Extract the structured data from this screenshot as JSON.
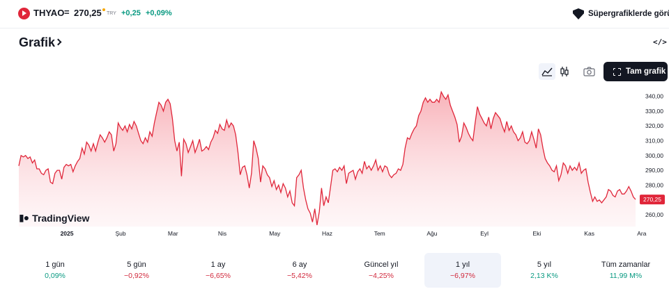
{
  "header": {
    "symbol": "THYAO",
    "equals": "=",
    "price": "270,25",
    "currency": "TRY",
    "change": "+0,25",
    "change_percent": "+0,09%",
    "super_label": "Süpergrafiklerde görün"
  },
  "section": {
    "title": "Grafik",
    "embed_icon": "code-icon"
  },
  "toolbar": {
    "chart_type_area_icon": "area-chart-icon",
    "chart_type_candle_icon": "candlestick-icon",
    "snapshot_icon": "camera-icon",
    "fullscreen_label": "Tam grafik",
    "fullscreen_icon": "fullscreen-icon"
  },
  "watermark": {
    "name": "TradingView",
    "mark": "17"
  },
  "chart_data": {
    "type": "area",
    "ylim": [
      252,
      345
    ],
    "yticks": [
      "340,00",
      "330,00",
      "320,00",
      "310,00",
      "300,00",
      "290,00",
      "280,00",
      "270,00",
      "260,00"
    ],
    "ytick_values": [
      340,
      330,
      320,
      310,
      300,
      290,
      280,
      270,
      260
    ],
    "xticks": [
      "2025",
      "Şub",
      "Mar",
      "Nis",
      "May",
      "Haz",
      "Tem",
      "Ağu",
      "Eyl",
      "Eki",
      "Kas",
      "Ara"
    ],
    "xtick_fractions": [
      0.078,
      0.165,
      0.25,
      0.33,
      0.415,
      0.5,
      0.585,
      0.67,
      0.755,
      0.84,
      0.925,
      1.01
    ],
    "last_value_label": "270,25",
    "last_value": 270.25,
    "line_color": "#e0263a",
    "values": [
      293,
      300,
      299,
      300,
      298,
      299,
      295,
      297,
      291,
      291,
      288,
      287,
      290,
      291,
      282,
      281,
      288,
      290,
      290,
      284,
      292,
      294,
      293,
      294,
      289,
      293,
      296,
      298,
      305,
      301,
      309,
      307,
      303,
      308,
      303,
      309,
      314,
      312,
      309,
      312,
      316,
      314,
      303,
      308,
      322,
      319,
      317,
      320,
      316,
      321,
      318,
      323,
      320,
      315,
      310,
      308,
      312,
      309,
      316,
      313,
      322,
      329,
      336,
      334,
      330,
      336,
      338,
      335,
      325,
      310,
      303,
      309,
      286,
      311,
      308,
      302,
      306,
      310,
      302,
      306,
      311,
      303,
      304,
      306,
      304,
      309,
      312,
      317,
      315,
      321,
      318,
      317,
      324,
      319,
      322,
      320,
      314,
      302,
      287,
      292,
      293,
      287,
      278,
      288,
      310,
      305,
      298,
      282,
      293,
      291,
      287,
      285,
      279,
      283,
      277,
      280,
      275,
      281,
      278,
      272,
      276,
      268,
      266,
      285,
      287,
      290,
      278,
      270,
      264,
      261,
      255,
      264,
      253,
      262,
      278,
      266,
      272,
      268,
      279,
      290,
      291,
      289,
      292,
      290,
      293,
      281,
      288,
      289,
      290,
      284,
      289,
      291,
      288,
      296,
      291,
      293,
      290,
      293,
      297,
      290,
      293,
      289,
      293,
      292,
      287,
      285,
      287,
      288,
      291,
      290,
      294,
      305,
      312,
      311,
      315,
      318,
      320,
      327,
      330,
      336,
      339,
      336,
      338,
      336,
      336,
      338,
      336,
      343,
      340,
      338,
      341,
      334,
      330,
      326,
      321,
      309,
      313,
      322,
      319,
      315,
      312,
      310,
      322,
      333,
      328,
      325,
      322,
      320,
      326,
      318,
      325,
      329,
      327,
      325,
      320,
      316,
      323,
      317,
      320,
      316,
      314,
      310,
      312,
      316,
      309,
      308,
      310,
      316,
      311,
      305,
      318,
      314,
      305,
      298,
      295,
      293,
      290,
      289,
      293,
      283,
      287,
      295,
      293,
      288,
      293,
      290,
      292,
      290,
      295,
      288,
      290,
      291,
      282,
      275,
      269,
      272,
      269,
      270,
      268,
      270,
      272,
      277,
      276,
      273,
      272,
      276,
      277,
      274,
      274,
      276,
      279,
      276,
      272,
      270.25
    ]
  },
  "periods": [
    {
      "label": "1 gün",
      "value": "0,09%",
      "trend": "pos",
      "selected": false
    },
    {
      "label": "5 gün",
      "value": "−0,92%",
      "trend": "neg",
      "selected": false
    },
    {
      "label": "1 ay",
      "value": "−6,65%",
      "trend": "neg",
      "selected": false
    },
    {
      "label": "6 ay",
      "value": "−5,42%",
      "trend": "neg",
      "selected": false
    },
    {
      "label": "Güncel yıl",
      "value": "−4,25%",
      "trend": "neg",
      "selected": false
    },
    {
      "label": "1 yıl",
      "value": "−6,97%",
      "trend": "neg",
      "selected": true
    },
    {
      "label": "5 yıl",
      "value": "2,13 K%",
      "trend": "pos",
      "selected": false
    },
    {
      "label": "Tüm zamanlar",
      "value": "11,99 M%",
      "trend": "pos",
      "selected": false
    }
  ]
}
